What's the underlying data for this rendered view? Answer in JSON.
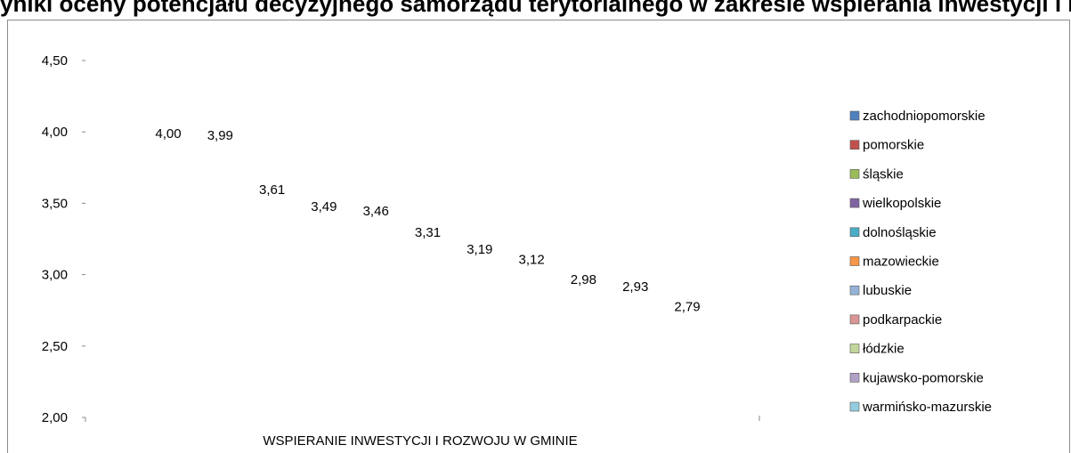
{
  "title": "yniki oceny potencjału decyzyjnego samorządu terytorialnego w zakresie wspierania inwestycji i rozwoju w gminie według województw",
  "chart_data": {
    "type": "bar",
    "title": "",
    "xlabel": "",
    "ylabel": "",
    "categories": [
      "WSPIERANIE INWESTYCJI I ROZWOJU W GMINIE"
    ],
    "ylim": [
      2.0,
      4.5
    ],
    "yticks": [
      "2,00",
      "2,50",
      "3,00",
      "3,50",
      "4,00",
      "4,50"
    ],
    "grid": false,
    "legend_position": "right",
    "series": [
      {
        "name": "zachodniopomorskie",
        "value": 4.0,
        "label": "4,00",
        "color": "#4f81bd"
      },
      {
        "name": "pomorskie",
        "value": 3.99,
        "label": "3,99",
        "color": "#c0504d"
      },
      {
        "name": "śląskie",
        "value": 3.61,
        "label": "3,61",
        "color": "#9bbb59"
      },
      {
        "name": "wielkopolskie",
        "value": 3.49,
        "label": "3,49",
        "color": "#8064a2"
      },
      {
        "name": "dolnośląskie",
        "value": 3.46,
        "label": "3,46",
        "color": "#4bacc6"
      },
      {
        "name": "mazowieckie",
        "value": 3.31,
        "label": "3,31",
        "color": "#f79646"
      },
      {
        "name": "lubuskie",
        "value": 3.19,
        "label": "3,19",
        "color": "#95b3d7"
      },
      {
        "name": "podkarpackie",
        "value": 3.12,
        "label": "3,12",
        "color": "#d99694"
      },
      {
        "name": "łódzkie",
        "value": 2.98,
        "label": "2,98",
        "color": "#c3d69b"
      },
      {
        "name": "kujawsko-pomorskie",
        "value": 2.93,
        "label": "2,93",
        "color": "#b2a1c7"
      },
      {
        "name": "warmińsko-mazurskie",
        "value": 2.79,
        "label": "2,79",
        "color": "#93cddd"
      }
    ]
  }
}
